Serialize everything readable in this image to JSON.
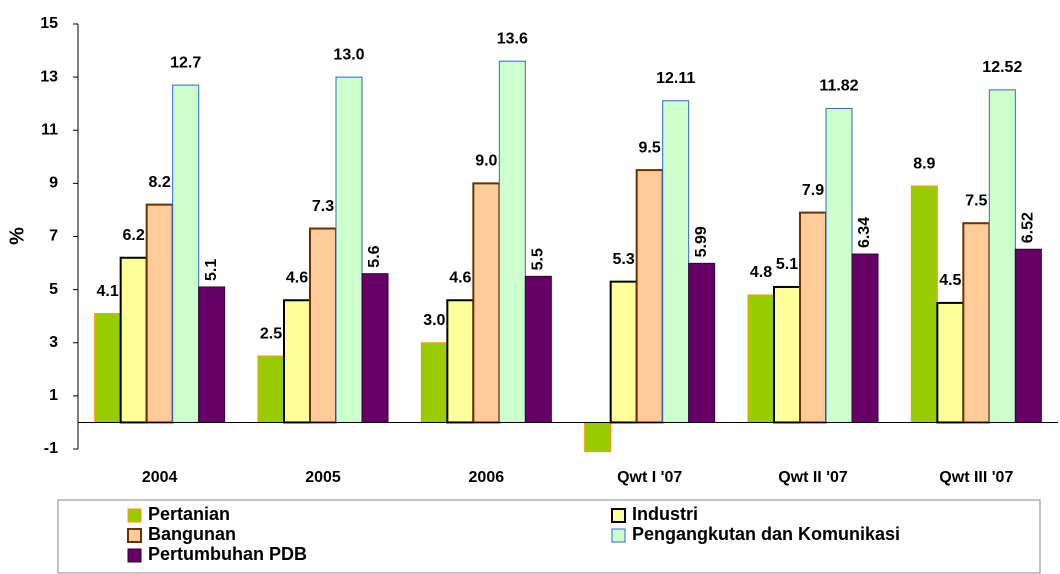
{
  "chart_data": {
    "type": "bar",
    "y_label": "%",
    "categories": [
      "2004",
      "2005",
      "2006",
      "Qwt I '07",
      "Qwt II '07",
      "Qwt III '07"
    ],
    "series": [
      {
        "name": "Pertanian",
        "color": "#99cc00",
        "values": [
          4.1,
          2.5,
          3.0,
          -1.1,
          4.8,
          8.9
        ],
        "value_labels": [
          "4.1",
          "2.5",
          "3.0",
          null,
          "4.8",
          "8.9"
        ]
      },
      {
        "name": "Industri",
        "color": "#ffff99",
        "values": [
          6.2,
          4.6,
          4.6,
          5.3,
          5.1,
          4.5
        ],
        "value_labels": [
          "6.2",
          "4.6",
          "4.6",
          "5.3",
          "5.1",
          "4.5"
        ]
      },
      {
        "name": "Bangunan",
        "color": "#ffcc99",
        "values": [
          8.2,
          7.3,
          9.0,
          9.5,
          7.9,
          7.5
        ],
        "value_labels": [
          "8.2",
          "7.3",
          "9.0",
          "9.5",
          "7.9",
          "7.5"
        ]
      },
      {
        "name": "Pengangkutan dan Komunikasi",
        "color": "#ccffcc",
        "values": [
          12.7,
          13.0,
          13.6,
          12.11,
          11.82,
          12.52
        ],
        "value_labels": [
          "12.7",
          "13.0",
          "13.6",
          "12.11",
          "11.82",
          "12.52"
        ]
      },
      {
        "name": "Pertumbuhan PDB",
        "color": "#660066",
        "values": [
          5.1,
          5.6,
          5.5,
          5.99,
          6.34,
          6.52
        ],
        "value_labels": [
          "5.1",
          "5.6",
          "5.5",
          "5.99",
          "6.34",
          "6.52"
        ]
      }
    ],
    "ylim": [
      -1,
      15
    ],
    "yticks": [
      -1,
      1,
      3,
      5,
      7,
      9,
      11,
      13,
      15
    ],
    "grid": false
  }
}
